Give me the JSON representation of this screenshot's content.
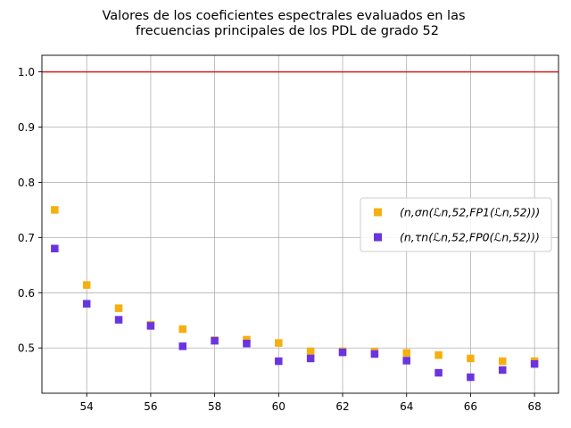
{
  "chart_data": {
    "type": "scatter",
    "title_lines": [
      "Valores de los coeficientes espectrales evaluados en las",
      "frecuencias principales de los PDL de grado 52"
    ],
    "xlabel": "",
    "ylabel": "",
    "xlim": [
      52.6,
      68.75
    ],
    "ylim": [
      0.418,
      1.03
    ],
    "x_ticks": [
      54,
      56,
      58,
      60,
      62,
      64,
      66,
      68
    ],
    "y_ticks": [
      0.5,
      0.6,
      0.7,
      0.8,
      0.9,
      1.0
    ],
    "x_tick_labels": [
      "54",
      "56",
      "58",
      "60",
      "62",
      "64",
      "66",
      "68"
    ],
    "y_tick_labels": [
      "0.5",
      "0.6",
      "0.7",
      "0.8",
      "0.9",
      "1.0"
    ],
    "grid": true,
    "legend_position": "center-right",
    "reference_line": {
      "y": 1.0,
      "color": "#e41a1c"
    },
    "series": [
      {
        "name": "(n, σ_n(ℒ^{n,52}, FP1(ℒ^{n,52})))",
        "legend_text": "(n,σn(ℒn,52,FP1(ℒn,52)))",
        "color": "#f5b00f",
        "marker": "square",
        "x": [
          53,
          54,
          55,
          56,
          57,
          58,
          59,
          60,
          61,
          62,
          63,
          64,
          65,
          66,
          67,
          68
        ],
        "y": [
          0.75,
          0.614,
          0.572,
          0.542,
          0.534,
          0.514,
          0.515,
          0.509,
          0.494,
          0.494,
          0.493,
          0.491,
          0.487,
          0.481,
          0.476,
          0.476
        ]
      },
      {
        "name": "(n, τ_n(ℒ^{n,52}, FP0(ℒ^{n,52})))",
        "legend_text": "(n,τn(ℒn,52,FP0(ℒn,52)))",
        "color": "#6a35e0",
        "marker": "square",
        "x": [
          53,
          54,
          55,
          56,
          57,
          58,
          59,
          60,
          61,
          62,
          63,
          64,
          65,
          66,
          67,
          68
        ],
        "y": [
          0.68,
          0.58,
          0.551,
          0.54,
          0.503,
          0.513,
          0.508,
          0.476,
          0.481,
          0.492,
          0.489,
          0.477,
          0.455,
          0.447,
          0.46,
          0.471
        ]
      }
    ]
  }
}
